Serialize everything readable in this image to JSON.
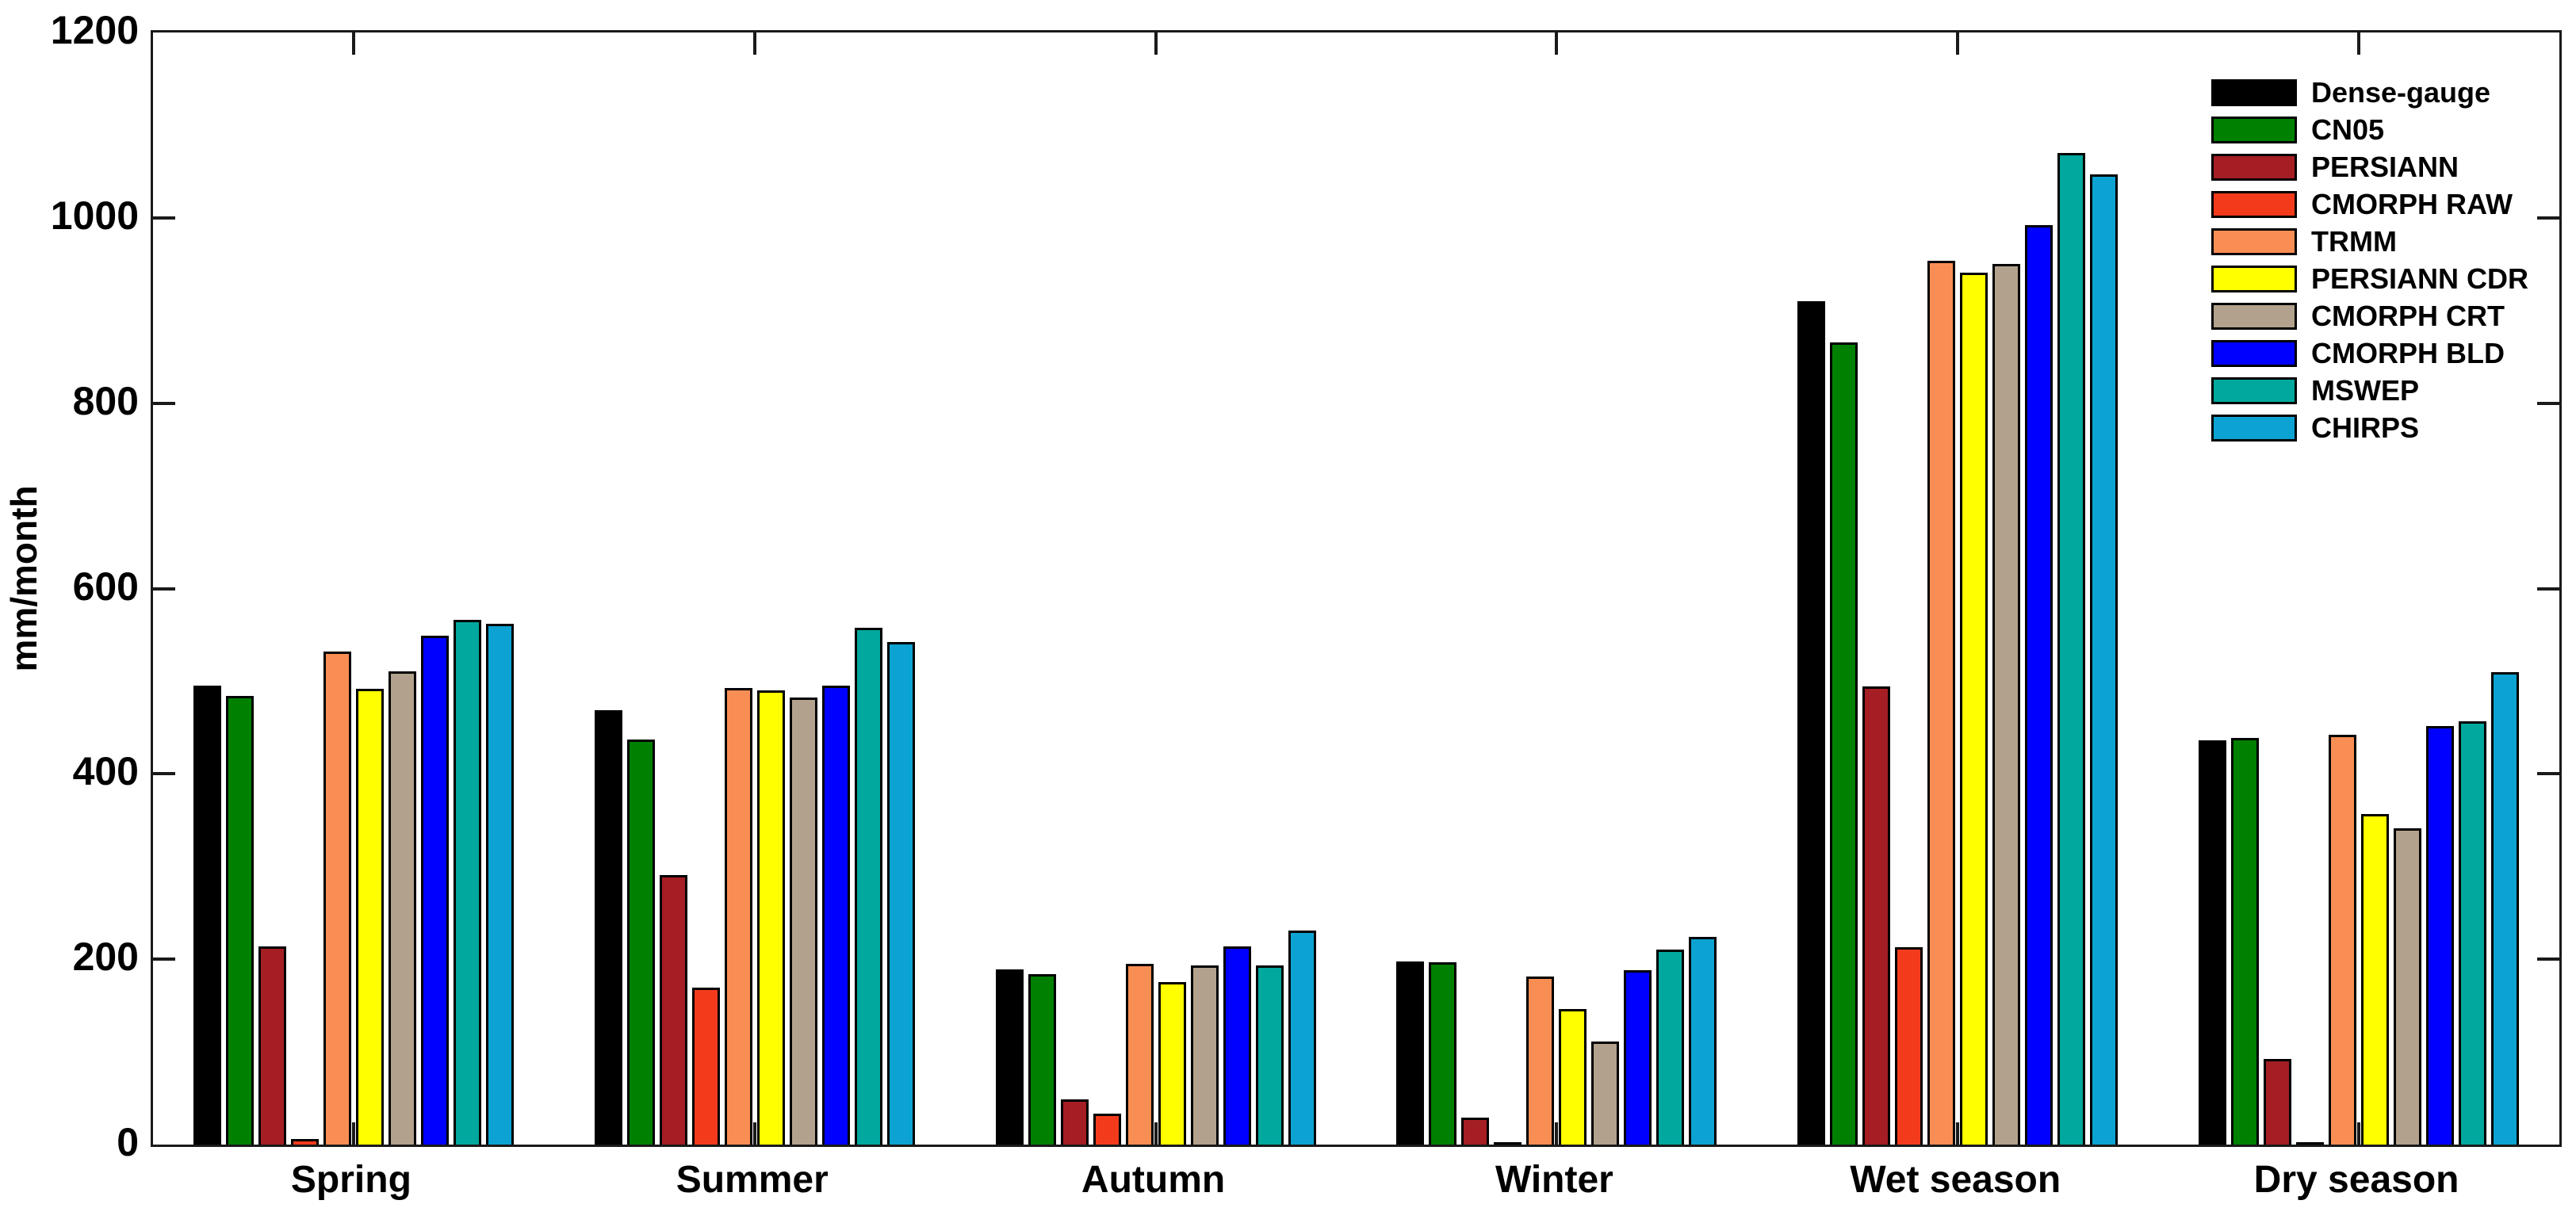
{
  "chart_data": {
    "type": "bar",
    "title": "",
    "xlabel": "",
    "ylabel": "mm/month",
    "ylim": [
      0,
      1200
    ],
    "yticks": [
      0,
      200,
      400,
      600,
      800,
      1000,
      1200
    ],
    "grid": false,
    "legend_position": "top-right-inside",
    "categories": [
      "Spring",
      "Summer",
      "Autumn",
      "Winter",
      "Wet season",
      "Dry season"
    ],
    "series": [
      {
        "name": "Dense-gauge",
        "color": "#000000",
        "values": [
          495,
          469,
          189,
          198,
          910,
          436
        ]
      },
      {
        "name": "CN05",
        "color": "#008000",
        "values": [
          484,
          437,
          184,
          197,
          866,
          439
        ]
      },
      {
        "name": "PERSIANN",
        "color": "#A41E24",
        "values": [
          214,
          291,
          49,
          29,
          494,
          92
        ]
      },
      {
        "name": "CMORPH RAW",
        "color": "#F33B1C",
        "values": [
          6,
          169,
          33,
          2,
          213,
          2
        ]
      },
      {
        "name": "TRMM",
        "color": "#F98E54",
        "values": [
          532,
          493,
          195,
          181,
          954,
          442
        ]
      },
      {
        "name": "PERSIANN CDR",
        "color": "#FFFF00",
        "values": [
          492,
          490,
          175,
          146,
          941,
          357
        ]
      },
      {
        "name": "CMORPH CRT",
        "color": "#B2A18C",
        "values": [
          511,
          482,
          193,
          111,
          950,
          341
        ]
      },
      {
        "name": "CMORPH BLD",
        "color": "#0000FF",
        "values": [
          549,
          495,
          214,
          188,
          992,
          452
        ]
      },
      {
        "name": "MSWEP",
        "color": "#00A89D",
        "values": [
          566,
          558,
          193,
          210,
          1070,
          457
        ]
      },
      {
        "name": "CHIRPS",
        "color": "#0CA3D2",
        "values": [
          562,
          542,
          231,
          224,
          1047,
          510
        ]
      }
    ]
  }
}
